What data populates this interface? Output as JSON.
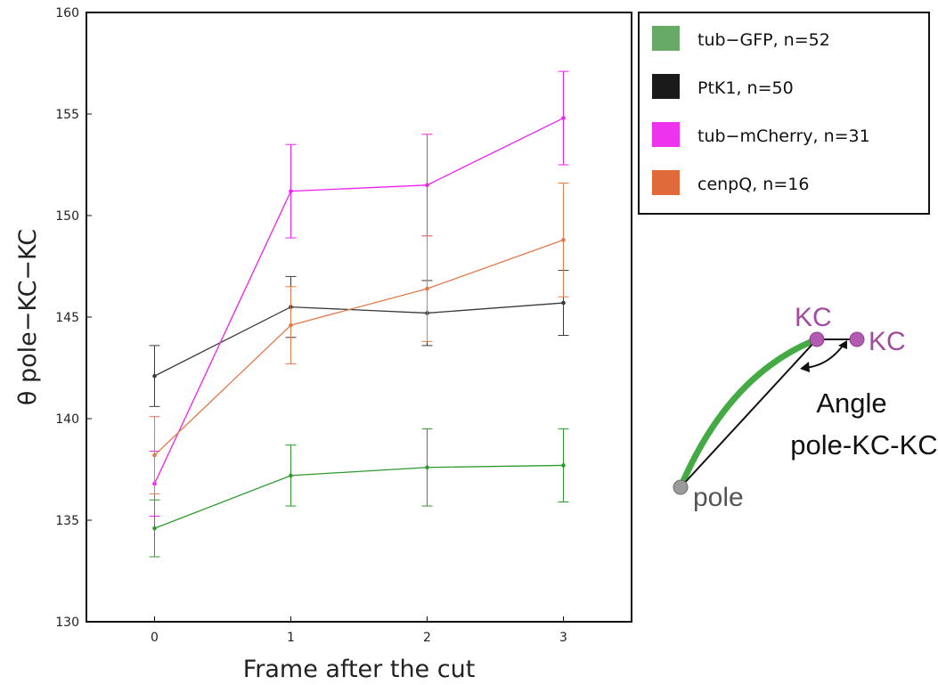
{
  "chart_data": {
    "type": "line",
    "xlabel": "Frame after the cut",
    "ylabel": "θ pole−KC−KC",
    "x": [
      0,
      1,
      2,
      3
    ],
    "xticks": [
      "0",
      "1",
      "2",
      "3"
    ],
    "xlim": [
      -0.5,
      3.5
    ],
    "ylim": [
      130,
      160
    ],
    "yticks": [
      "130",
      "135",
      "140",
      "145",
      "150",
      "155",
      "160"
    ],
    "grid": false,
    "legend_position": "right, outside axes, top",
    "series": [
      {
        "name": "tub−GFP, n=52",
        "color": "#2e9a2e",
        "legend_color": "#66aa66",
        "values": [
          134.6,
          137.2,
          137.6,
          137.7
        ],
        "errors": [
          1.4,
          1.5,
          1.9,
          1.8
        ]
      },
      {
        "name": "PtK1, n=50",
        "color": "#3a3a3a",
        "legend_color": "#1a1a1a",
        "values": [
          142.1,
          145.5,
          145.2,
          145.7
        ],
        "errors": [
          1.5,
          1.5,
          1.6,
          1.6
        ]
      },
      {
        "name": "tub−mCherry, n=31",
        "color": "#ee22ee",
        "legend_color": "#ee33ee",
        "values": [
          136.8,
          151.2,
          151.5,
          154.8
        ],
        "errors": [
          1.6,
          2.3,
          2.5,
          2.3
        ]
      },
      {
        "name": "cenpQ, n=16",
        "color": "#e07a4a",
        "legend_color": "#e06a3a",
        "values": [
          138.2,
          144.6,
          146.4,
          148.8
        ],
        "errors": [
          1.9,
          1.9,
          2.6,
          2.8
        ]
      }
    ]
  },
  "inset": {
    "kc_label_1": "KC",
    "kc_label_2": "KC",
    "angle_label_line1": "Angle",
    "angle_label_line2": "pole-KC-KC",
    "pole_label": "pole"
  }
}
